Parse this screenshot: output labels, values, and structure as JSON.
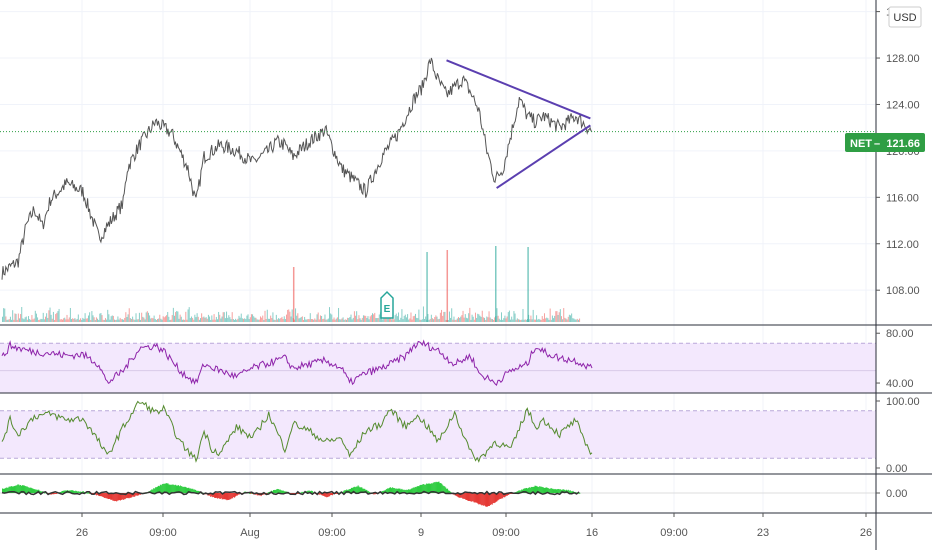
{
  "currency_button": "USD",
  "price_badge": {
    "symbol": "NET",
    "value": "121.66",
    "color": "#2f9e44"
  },
  "earnings_marker": "E",
  "colors": {
    "price_line": "#555555",
    "triangle": "#5b3fb0",
    "rsi": "#8e24aa",
    "stoch": "#558b2f",
    "band_fill": "#f3e8fd",
    "vol_up": "#26a69a",
    "vol_down": "#ef5350",
    "hist_up": "#2ecc40",
    "hist_down": "#e53935"
  },
  "x_axis_labels": [
    "26",
    "09:00",
    "Aug",
    "09:00",
    "9",
    "09:00",
    "16",
    "09:00",
    "23",
    "26"
  ],
  "chart_data": [
    {
      "type": "line",
      "name": "price",
      "y_axis_labels": [
        "132.00",
        "128.00",
        "124.00",
        "120.00",
        "116.00",
        "112.00",
        "108.00"
      ],
      "ylim": [
        105,
        133
      ],
      "last_value": 121.66,
      "x": [
        0,
        2,
        3,
        4,
        5,
        6,
        8,
        10,
        12,
        14,
        15,
        15.5,
        17,
        19,
        21,
        23,
        24,
        25,
        27,
        29,
        31,
        33,
        34,
        35,
        36,
        38,
        40,
        42,
        45,
        47,
        49,
        51,
        52,
        53,
        54,
        55,
        56,
        57,
        58,
        59,
        60,
        61,
        62,
        63,
        64,
        65,
        66,
        67,
        69,
        71,
        73
      ],
      "values": [
        109.5,
        110.5,
        113.5,
        115,
        113.5,
        115.8,
        117.2,
        116.5,
        112.5,
        114.5,
        115.5,
        118.5,
        120.5,
        122.5,
        121.5,
        118.5,
        115.5,
        119.5,
        120.5,
        120,
        119,
        120,
        120.8,
        120.5,
        119.5,
        120.8,
        121.8,
        118.5,
        116.5,
        119.5,
        121.5,
        124.5,
        125.5,
        127.8,
        126,
        124.8,
        125.5,
        126.2,
        125,
        123.5,
        120,
        117.5,
        118.5,
        121.5,
        124.5,
        123,
        122.5,
        123,
        122,
        123,
        121.66
      ],
      "annotations": [
        "symmetrical triangle: upper line from 127.8 to 122.8, lower line from 116.8 to 122.2"
      ]
    },
    {
      "type": "bar",
      "name": "volume",
      "spikes": [
        {
          "x": 36,
          "value": 55,
          "up": false
        },
        {
          "x": 52.5,
          "value": 70,
          "up": true
        },
        {
          "x": 55,
          "value": 72,
          "up": false
        },
        {
          "x": 61,
          "value": 76,
          "up": true
        },
        {
          "x": 65,
          "value": 75,
          "up": true
        }
      ]
    },
    {
      "type": "line",
      "name": "rsi",
      "y_axis_labels": [
        "80.00",
        "40.00"
      ],
      "ylim": [
        32,
        85
      ],
      "band": [
        72,
        32
      ],
      "x": [
        0,
        1,
        2,
        4,
        6,
        8,
        10,
        12,
        13,
        14,
        15,
        17,
        19,
        20,
        22,
        24,
        25,
        27,
        29,
        31,
        33,
        35,
        36,
        38,
        40,
        42,
        43,
        45,
        47,
        48,
        50,
        51,
        52,
        54,
        56,
        58,
        59,
        61,
        63,
        65,
        66,
        67,
        69,
        71,
        73
      ],
      "values": [
        60,
        70,
        68,
        65,
        64,
        62,
        63,
        55,
        40,
        45,
        50,
        68,
        70,
        66,
        50,
        40,
        55,
        50,
        45,
        52,
        56,
        60,
        52,
        55,
        58,
        52,
        40,
        48,
        52,
        55,
        62,
        70,
        72,
        66,
        55,
        62,
        48,
        40,
        50,
        55,
        70,
        65,
        60,
        58,
        52
      ]
    },
    {
      "type": "line",
      "name": "stochastic",
      "y_axis_labels": [
        "100.00",
        "0.00"
      ],
      "ylim": [
        0,
        100
      ],
      "band": [
        80,
        20
      ],
      "x": [
        0,
        1,
        2,
        4,
        6,
        8,
        10,
        12,
        13,
        14,
        15,
        17,
        18,
        19,
        20,
        22,
        24,
        25,
        26,
        27,
        29,
        31,
        33,
        35,
        36,
        38,
        40,
        42,
        43,
        45,
        47,
        48,
        50,
        51,
        52,
        54,
        55,
        56,
        58,
        59,
        61,
        63,
        65,
        66,
        67,
        69,
        71,
        72,
        73
      ],
      "values": [
        40,
        70,
        50,
        75,
        78,
        70,
        72,
        40,
        20,
        40,
        60,
        95,
        88,
        80,
        85,
        40,
        15,
        55,
        30,
        25,
        60,
        45,
        78,
        30,
        65,
        55,
        40,
        45,
        20,
        55,
        65,
        85,
        60,
        75,
        70,
        40,
        60,
        80,
        25,
        15,
        40,
        30,
        85,
        60,
        70,
        50,
        70,
        40,
        25
      ]
    },
    {
      "type": "bar",
      "name": "momentum-histogram",
      "y_axis_labels": [
        "0.00"
      ],
      "ylim": [
        -1,
        1
      ],
      "x": [
        0,
        2,
        4,
        6,
        8,
        10,
        12,
        14,
        16,
        18,
        20,
        22,
        24,
        26,
        28,
        30,
        32,
        34,
        36,
        38,
        40,
        42,
        44,
        46,
        48,
        50,
        52,
        54,
        56,
        58,
        60,
        62,
        64,
        66,
        68,
        70,
        72
      ],
      "values": [
        0.3,
        0.6,
        0.3,
        -0.1,
        0.2,
        0.1,
        -0.2,
        -0.6,
        -0.3,
        0.1,
        0.7,
        0.5,
        0.2,
        -0.3,
        -0.5,
        0.1,
        -0.2,
        0.3,
        -0.1,
        0.2,
        -0.3,
        0.1,
        0.5,
        -0.1,
        0.4,
        0.2,
        0.6,
        0.8,
        -0.2,
        -0.6,
        -1.0,
        -0.3,
        0.2,
        0.5,
        0.3,
        0.2,
        -0.1
      ]
    }
  ]
}
